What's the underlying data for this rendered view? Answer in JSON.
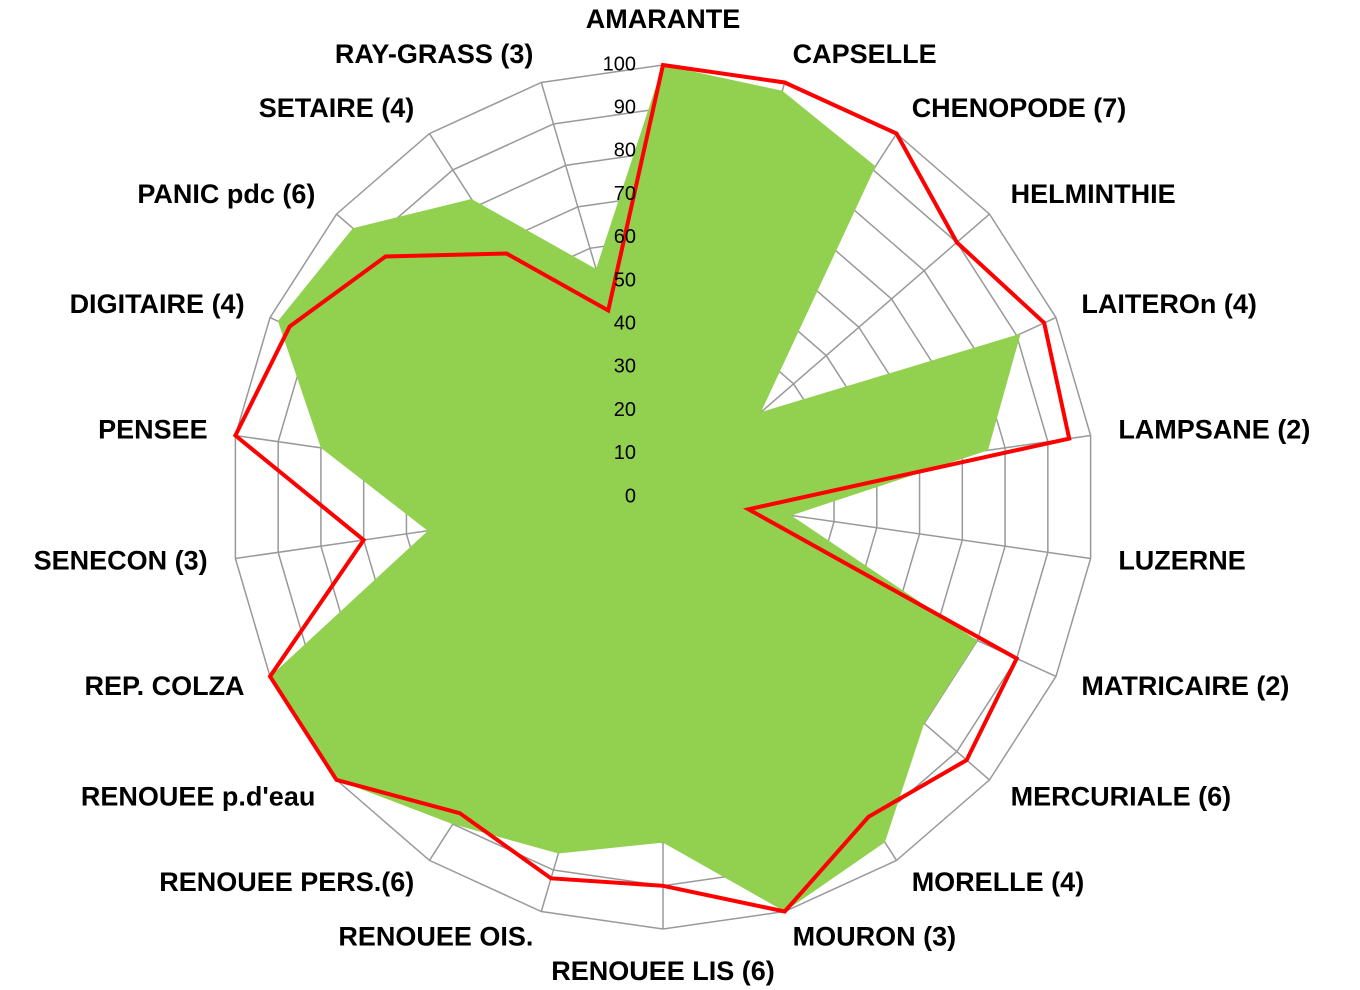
{
  "chart_data": {
    "type": "radar",
    "categories": [
      "AMARANTE",
      "CAPSELLE",
      "CHENOPODE (7)",
      "HELMINTHIE",
      "LAITEROn (4)",
      "LAMPSANE (2)",
      "LUZERNE",
      "MATRICAIRE (2)",
      "MERCURIALE (6)",
      "MORELLE (4)",
      "MOURON (3)",
      "RENOUEE LIS (6)",
      "RENOUEE OIS.",
      "RENOUEE PERS.(6)",
      "RENOUEE p.d'eau",
      "REP. COLZA",
      "SENECON (3)",
      "PENSEE",
      "DIGITAIRE (4)",
      "PANIC pdc (6)",
      "SETAIRE (4)",
      "RAY-GRASS (3)"
    ],
    "series": [
      {
        "color": "#92d050",
        "filled": true,
        "values": [
          100,
          98,
          91,
          30,
          91,
          76,
          30,
          80,
          80,
          95,
          100,
          80,
          86,
          90,
          100,
          100,
          55,
          80,
          98,
          95,
          82,
          55
        ]
      },
      {
        "color": "#ff0000",
        "filled": false,
        "values": [
          100,
          100,
          100,
          90,
          97,
          95,
          20,
          90,
          93,
          88,
          100,
          90,
          92,
          87,
          100,
          100,
          70,
          100,
          95,
          85,
          67,
          45
        ]
      }
    ],
    "ylim": [
      0,
      100
    ],
    "yticks": [
      0,
      10,
      20,
      30,
      40,
      50,
      60,
      70,
      80,
      90,
      100
    ],
    "grid": true
  }
}
